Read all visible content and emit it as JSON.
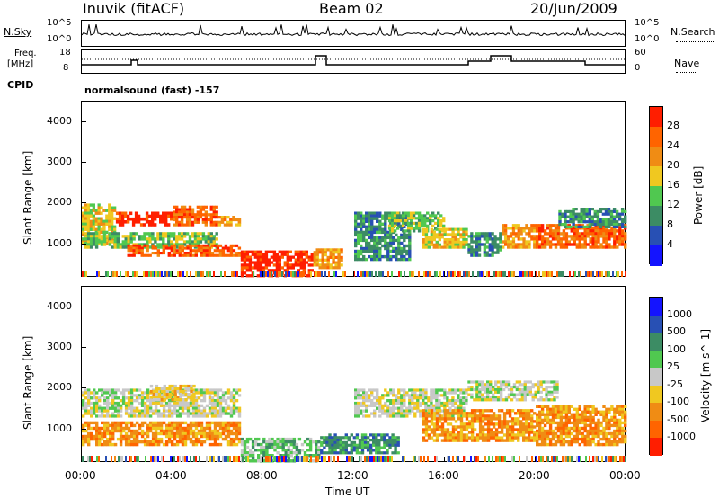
{
  "header": {
    "station": "Inuvik (fitACF)",
    "beam": "Beam 02",
    "date": "20/Jun/2009"
  },
  "nsky_panel": {
    "left_label": "N.Sky",
    "left_ticks": [
      "10^5",
      "10^0"
    ],
    "right_label": "N.Search",
    "right_ticks": [
      "10^5",
      "10^0"
    ]
  },
  "freq_panel": {
    "left_label_1": "Freq.",
    "left_label_2": "[MHz]",
    "left_ticks": [
      "18",
      "8"
    ],
    "right_label": "Nave",
    "right_ticks": [
      "60",
      "0"
    ]
  },
  "cpid": {
    "label": "CPID",
    "value": "normalsound (fast) -157"
  },
  "colors": {
    "power_scale": [
      "#1414ff",
      "#2850b4",
      "#3c8c64",
      "#50c850",
      "#f0c820",
      "#f08c14",
      "#ff6400",
      "#ff1e00"
    ],
    "velocity_scale": [
      "#ff1e00",
      "#ff6400",
      "#f08c14",
      "#f0c820",
      "#c8c8c8",
      "#50c850",
      "#3c8c64",
      "#2850b4",
      "#1414ff"
    ]
  },
  "chart_data": [
    {
      "type": "heatmap",
      "title": "",
      "ylabel": "Slant Range [km]",
      "y_ticks": [
        "4000",
        "3000",
        "2000",
        "1000"
      ],
      "ylim": [
        180,
        4500
      ],
      "colorbar_label": "Power [dB]",
      "colorbar_ticks": [
        "28",
        "24",
        "20",
        "16",
        "12",
        "8",
        "4"
      ],
      "regions": [
        {
          "t": [
            0,
            1.5
          ],
          "r": [
            1000,
            2000
          ],
          "level": 4
        },
        {
          "t": [
            1.5,
            4
          ],
          "r": [
            1450,
            1800
          ],
          "level": 7
        },
        {
          "t": [
            4,
            6
          ],
          "r": [
            1450,
            1950
          ],
          "level": 6
        },
        {
          "t": [
            6,
            7
          ],
          "r": [
            1450,
            1700
          ],
          "level": 5
        },
        {
          "t": [
            0,
            6
          ],
          "r": [
            900,
            1300
          ],
          "level": 3
        },
        {
          "t": [
            2,
            7
          ],
          "r": [
            700,
            1000
          ],
          "level": 6
        },
        {
          "t": [
            7,
            10.2
          ],
          "r": [
            200,
            850
          ],
          "level": 7
        },
        {
          "t": [
            10.2,
            11.5
          ],
          "r": [
            400,
            900
          ],
          "level": 5
        },
        {
          "t": [
            12,
            14.5
          ],
          "r": [
            600,
            1800
          ],
          "level": 2
        },
        {
          "t": [
            13.5,
            16
          ],
          "r": [
            1300,
            1800
          ],
          "level": 3
        },
        {
          "t": [
            15,
            17
          ],
          "r": [
            900,
            1400
          ],
          "level": 4
        },
        {
          "t": [
            17,
            18.5
          ],
          "r": [
            700,
            1300
          ],
          "level": 2
        },
        {
          "t": [
            18.5,
            20
          ],
          "r": [
            900,
            1500
          ],
          "level": 5
        },
        {
          "t": [
            20,
            24
          ],
          "r": [
            900,
            1500
          ],
          "level": 6
        },
        {
          "t": [
            21,
            24
          ],
          "r": [
            1400,
            1900
          ],
          "level": 2
        }
      ]
    },
    {
      "type": "heatmap",
      "title": "",
      "xlabel": "Time UT",
      "ylabel": "Slant Range [km]",
      "x_ticks": [
        "00:00",
        "04:00",
        "08:00",
        "12:00",
        "16:00",
        "20:00",
        "00:00"
      ],
      "y_ticks": [
        "4000",
        "3000",
        "2000",
        "1000"
      ],
      "ylim": [
        180,
        4500
      ],
      "colorbar_label": "Velocity [m s^-1]",
      "colorbar_ticks": [
        "1000",
        "500",
        "100",
        "25",
        "-25",
        "-100",
        "-500",
        "-1000"
      ],
      "regions": [
        {
          "t": [
            0,
            7
          ],
          "r": [
            1300,
            2000
          ],
          "level": 4
        },
        {
          "t": [
            3,
            5
          ],
          "r": [
            1700,
            2100
          ],
          "level": 3
        },
        {
          "t": [
            0,
            7
          ],
          "r": [
            600,
            1200
          ],
          "level": 2
        },
        {
          "t": [
            7,
            10.5
          ],
          "r": [
            200,
            800
          ],
          "level": 5
        },
        {
          "t": [
            10.5,
            14
          ],
          "r": [
            400,
            900
          ],
          "level": 6
        },
        {
          "t": [
            12,
            17
          ],
          "r": [
            1300,
            2000
          ],
          "level": 4
        },
        {
          "t": [
            15,
            20
          ],
          "r": [
            700,
            1500
          ],
          "level": 2
        },
        {
          "t": [
            20,
            24
          ],
          "r": [
            600,
            1600
          ],
          "level": 2
        },
        {
          "t": [
            17,
            21
          ],
          "r": [
            1700,
            2200
          ],
          "level": 4
        }
      ]
    }
  ]
}
